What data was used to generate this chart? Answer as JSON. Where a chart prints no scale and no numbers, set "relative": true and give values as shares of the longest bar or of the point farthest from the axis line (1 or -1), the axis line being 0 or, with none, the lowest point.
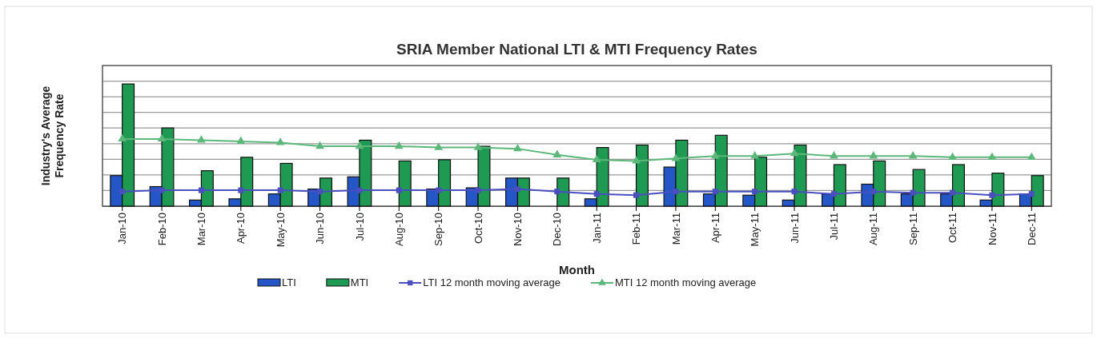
{
  "chart_data": {
    "type": "bar",
    "title": "SRIA Member National LTI & MTI Frequency Rates",
    "xlabel": "Month",
    "ylabel": "Industry's Average Frequency Rate",
    "relative": true,
    "grid": "y",
    "legend": "bottom",
    "categories": [
      "Jan-10",
      "Feb-10",
      "Mar-10",
      "Apr-10",
      "May-10",
      "Jun-10",
      "Jul-10",
      "Aug-10",
      "Sep-10",
      "Oct-10",
      "Nov-10",
      "Dec-10",
      "Jan-11",
      "Feb-11",
      "Mar-11",
      "Apr-11",
      "May-11",
      "Jun-11",
      "Jul-11",
      "Aug-11",
      "Sep-11",
      "Oct-11",
      "Nov-11",
      "Dec-11"
    ],
    "series": [
      {
        "name": "LTI",
        "color": "#2456c8",
        "values": [
          0.25,
          0.16,
          0.05,
          0.06,
          0.1,
          0.14,
          0.24,
          0,
          0.14,
          0.15,
          0.23,
          0,
          0.06,
          0,
          0.32,
          0.1,
          0.09,
          0.05,
          0.1,
          0.18,
          0.1,
          0.1,
          0.05,
          0.1
        ]
      },
      {
        "name": "MTI",
        "color": "#1f9a52",
        "values": [
          1,
          0.64,
          0.29,
          0.4,
          0.35,
          0.23,
          0.54,
          0.37,
          0.38,
          0.49,
          0.23,
          0.23,
          0.48,
          0.5,
          0.54,
          0.58,
          0.4,
          0.5,
          0.34,
          0.37,
          0.3,
          0.34,
          0.27,
          0.25
        ]
      },
      {
        "name": "LTI 12 month moving average",
        "type": "line",
        "color": "#4a4fc0",
        "marker": "square",
        "values": [
          0.12,
          0.13,
          0.13,
          0.13,
          0.13,
          0.12,
          0.13,
          0.13,
          0.13,
          0.13,
          0.14,
          0.12,
          0.1,
          0.09,
          0.12,
          0.12,
          0.12,
          0.12,
          0.1,
          0.12,
          0.11,
          0.11,
          0.09,
          0.1
        ]
      },
      {
        "name": "MTI 12 month moving average",
        "type": "line",
        "color": "#5cb87a",
        "marker": "triangle",
        "values": [
          0.55,
          0.55,
          0.54,
          0.53,
          0.52,
          0.49,
          0.49,
          0.49,
          0.48,
          0.48,
          0.47,
          0.42,
          0.38,
          0.37,
          0.39,
          0.41,
          0.41,
          0.43,
          0.41,
          0.41,
          0.41,
          0.4,
          0.4,
          0.4
        ]
      }
    ]
  }
}
